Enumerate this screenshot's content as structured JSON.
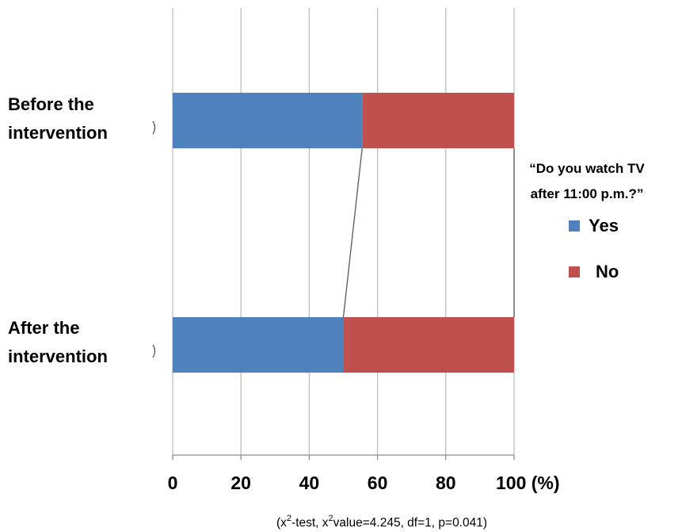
{
  "chart_data": {
    "type": "bar",
    "orientation": "horizontal",
    "stacked": true,
    "categories": [
      "Before the intervention",
      "After the intervention"
    ],
    "category_lines": [
      [
        "Before the",
        "intervention"
      ],
      [
        "After the",
        "intervention"
      ]
    ],
    "series": [
      {
        "name": "Yes",
        "color": "#4f81bd",
        "values": [
          55.5,
          50
        ]
      },
      {
        "name": "No",
        "color": "#c0504d",
        "values": [
          44.5,
          50
        ]
      }
    ],
    "xlim": [
      0,
      100
    ],
    "xticks": [
      0,
      20,
      40,
      60,
      80,
      100
    ],
    "xtick_labels": [
      "0",
      "20",
      "40",
      "60",
      "80",
      "100 (%)"
    ],
    "grid": "vertical",
    "legend_title_lines": [
      "“Do you watch TV",
      "after 11:00 p.m.?”"
    ],
    "legend_position": "right",
    "footnote": {
      "open": "(x",
      "sup1": "2",
      "mid1": "-test, x",
      "sup2": "2",
      "rest": "value=4.245, df=1, p=0.041)"
    }
  }
}
